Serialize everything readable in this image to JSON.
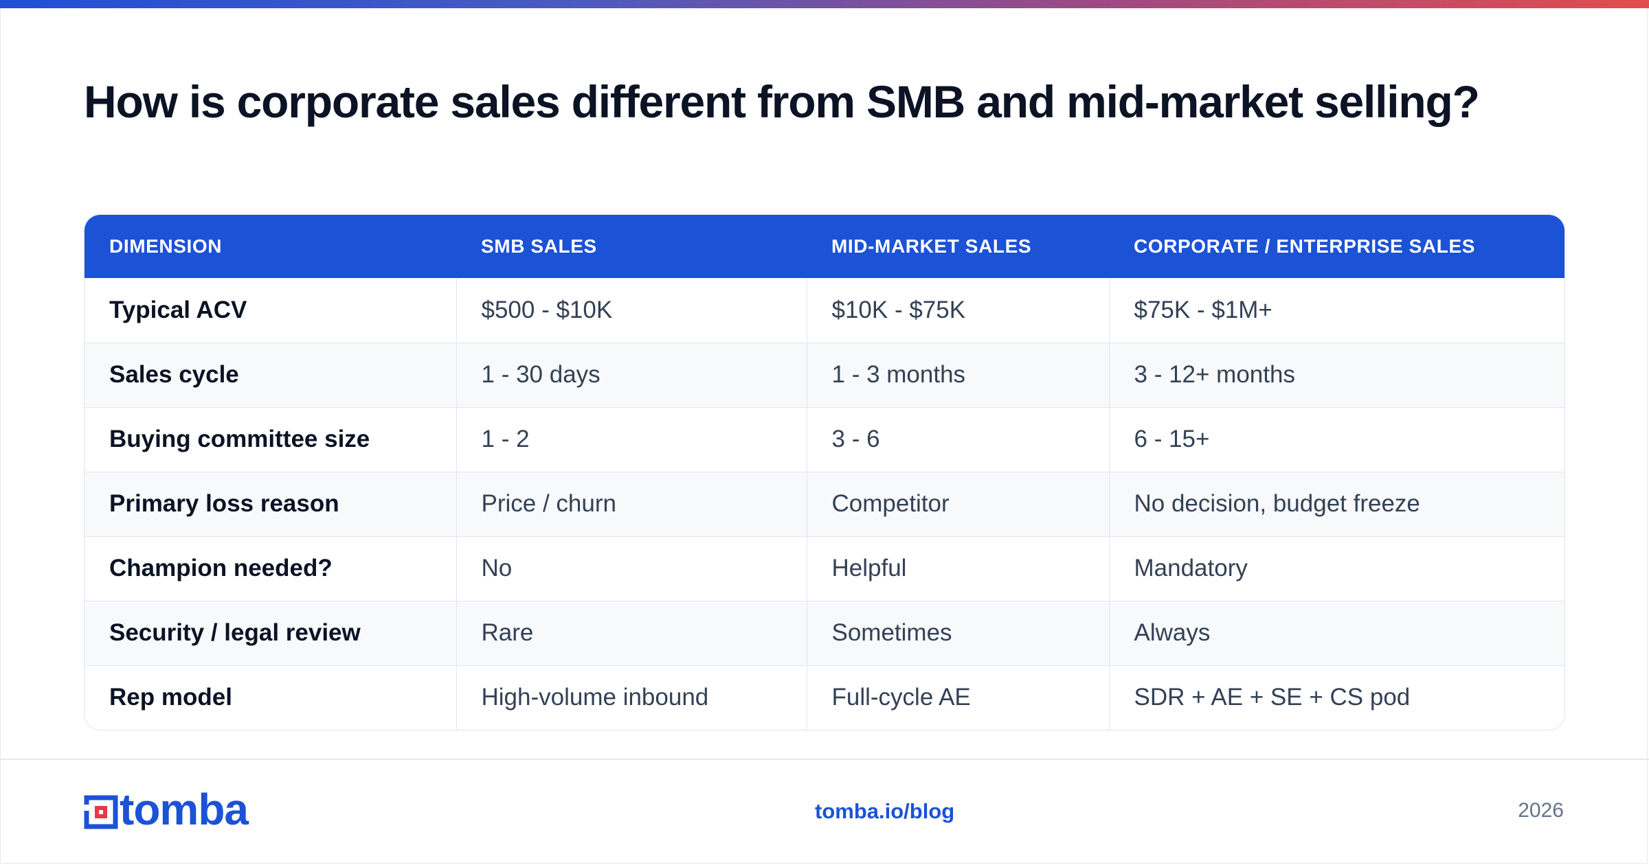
{
  "title": "How is corporate sales different from SMB and mid-market selling?",
  "table": {
    "headers": [
      "DIMENSION",
      "SMB SALES",
      "MID-MARKET SALES",
      "CORPORATE / ENTERPRISE SALES"
    ],
    "rows": [
      [
        "Typical ACV",
        "$500 - $10K",
        "$10K - $75K",
        "$75K - $1M+"
      ],
      [
        "Sales cycle",
        "1 - 30 days",
        "1 - 3 months",
        "3 - 12+ months"
      ],
      [
        "Buying committee size",
        "1 - 2",
        "3 - 6",
        "6 - 15+"
      ],
      [
        "Primary loss reason",
        "Price / churn",
        "Competitor",
        "No decision, budget freeze"
      ],
      [
        "Champion needed?",
        "No",
        "Helpful",
        "Mandatory"
      ],
      [
        "Security / legal review",
        "Rare",
        "Sometimes",
        "Always"
      ],
      [
        "Rep model",
        "High-volume inbound",
        "Full-cycle AE",
        "SDR + AE + SE + CS pod"
      ]
    ]
  },
  "footer": {
    "logo_text": "tomba",
    "logo_icon": "tomba-logo-icon",
    "link": "tomba.io/blog",
    "year": "2026"
  },
  "colors": {
    "accent": "#1c52d6",
    "logo_red": "#e63946",
    "gradient_start": "#1f4fd6",
    "gradient_end": "#e24d4d"
  }
}
